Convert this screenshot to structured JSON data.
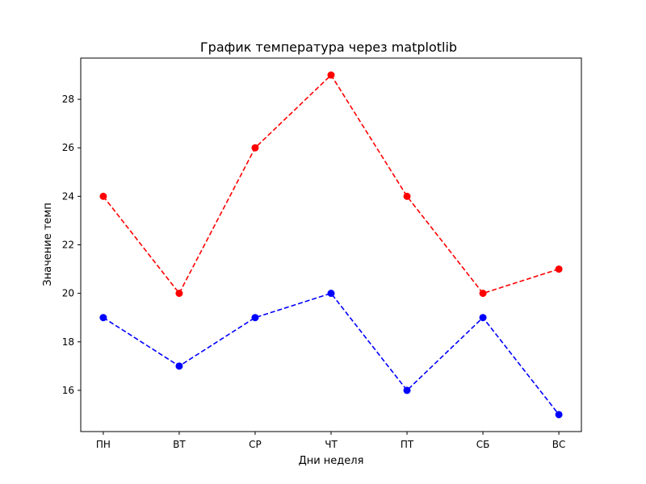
{
  "chart_data": {
    "type": "line",
    "title": "График температура через matplotlib",
    "xlabel": "Дни неделя",
    "ylabel": "Значение темп",
    "categories": [
      "ПН",
      "ВТ",
      "СР",
      "ЧТ",
      "ПТ",
      "СБ",
      "ВС"
    ],
    "y_ticks": [
      16,
      18,
      20,
      22,
      24,
      26,
      28
    ],
    "ylim": [
      14.3,
      29.7
    ],
    "grid": false,
    "legend": "none",
    "series": [
      {
        "color": "#ff0000",
        "line_style": "dashed",
        "marker": "circle",
        "values": [
          24,
          20,
          26,
          29,
          24,
          20,
          21
        ]
      },
      {
        "color": "#0000ff",
        "line_style": "dashed",
        "marker": "circle",
        "values": [
          19,
          17,
          19,
          20,
          16,
          19,
          15
        ]
      }
    ]
  }
}
